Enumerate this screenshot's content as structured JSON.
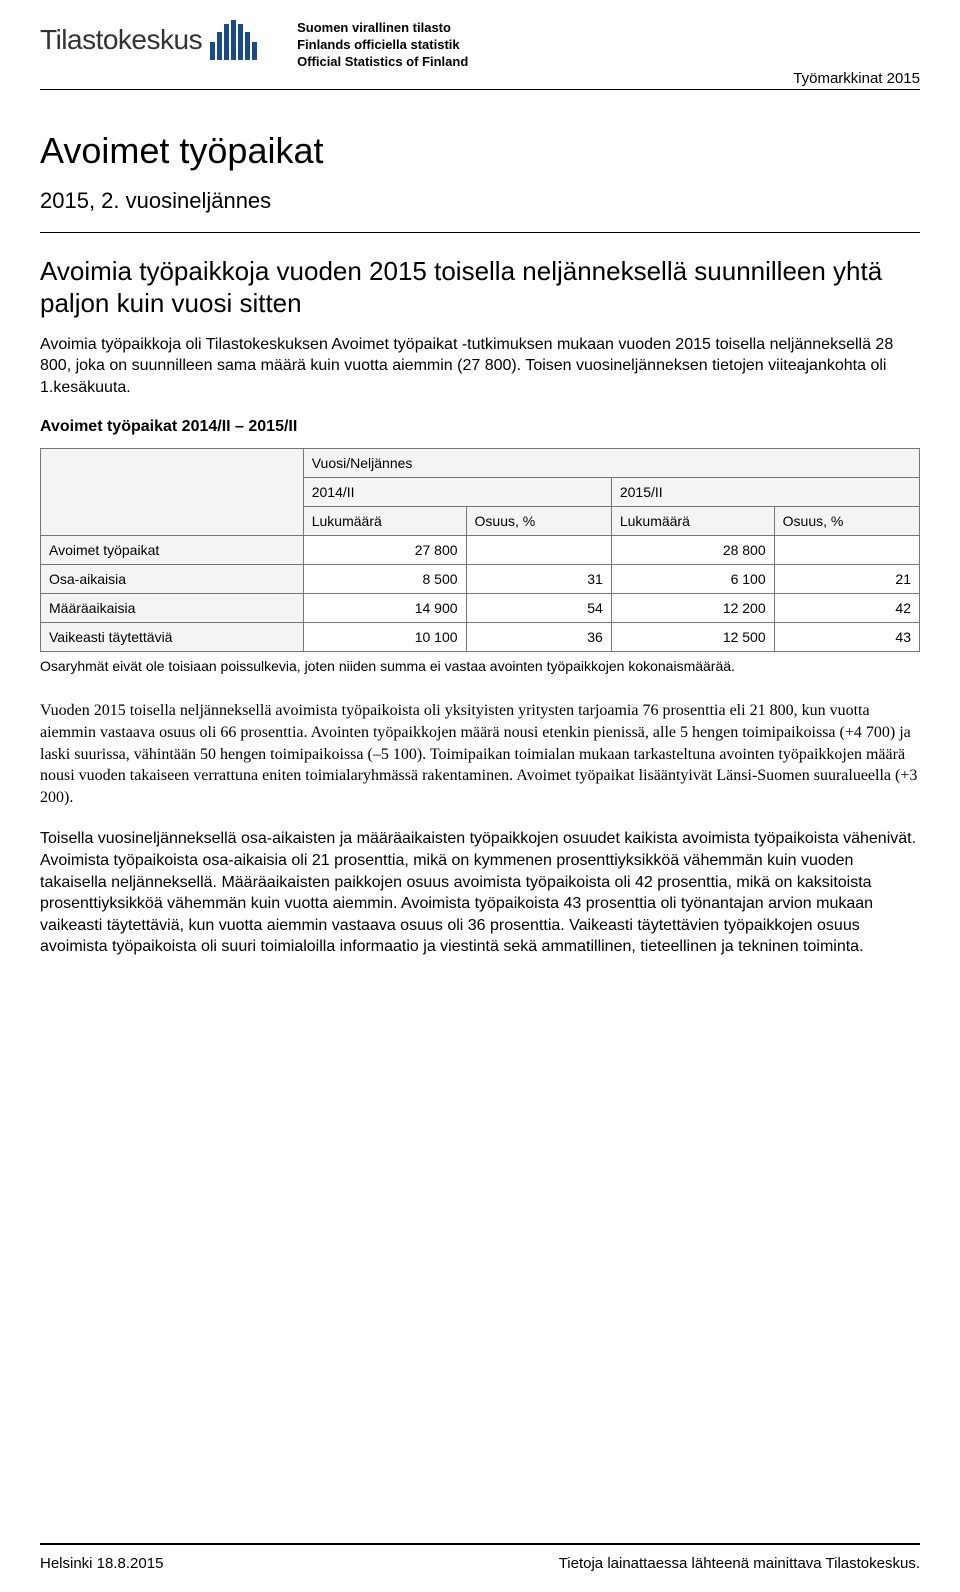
{
  "header": {
    "logo_text": "Tilastokeskus",
    "official_lines": [
      "Suomen virallinen tilasto",
      "Finlands officiella statistik",
      "Official Statistics of Finland"
    ],
    "category": "Työmarkkinat 2015"
  },
  "title": "Avoimet työpaikat",
  "subtitle": "2015, 2. vuosineljännes",
  "heading": "Avoimia työpaikkoja vuoden 2015 toisella neljänneksellä suunnilleen yhtä paljon kuin vuosi sitten",
  "intro": "Avoimia työpaikkoja oli Tilastokeskuksen Avoimet työpaikat -tutkimuksen mukaan vuoden 2015 toisella neljänneksellä 28 800, joka on suunnilleen sama määrä kuin vuotta aiemmin (27 800). Toisen vuosineljänneksen tietojen viiteajankohta oli 1.kesäkuuta.",
  "table": {
    "title": "Avoimet työpaikat 2014/II – 2015/II",
    "group_header": "Vuosi/Neljännes",
    "period1": "2014/II",
    "period2": "2015/II",
    "col_count": "Lukumäärä",
    "col_share": "Osuus, %",
    "rows": [
      {
        "label": "Avoimet työpaikat",
        "c1": "27 800",
        "s1": "",
        "c2": "28 800",
        "s2": ""
      },
      {
        "label": "Osa-aikaisia",
        "c1": "8 500",
        "s1": "31",
        "c2": "6 100",
        "s2": "21"
      },
      {
        "label": "Määräaikaisia",
        "c1": "14 900",
        "s1": "54",
        "c2": "12 200",
        "s2": "42"
      },
      {
        "label": "Vaikeasti täytettäviä",
        "c1": "10 100",
        "s1": "36",
        "c2": "12 500",
        "s2": "43"
      }
    ],
    "note": "Osaryhmät eivät ole toisiaan poissulkevia, joten niiden summa ei vastaa avointen työpaikkojen kokonaismäärää."
  },
  "para1": "Vuoden 2015 toisella neljänneksellä avoimista työpaikoista oli yksityisten yritysten tarjoamia 76 prosenttia eli 21 800, kun vuotta aiemmin vastaava osuus oli 66 prosenttia. Avointen työpaikkojen määrä nousi etenkin pienissä, alle 5 hengen toimipaikoissa (+4 700) ja laski suurissa, vähintään 50 hengen toimipaikoissa (–5 100). Toimipaikan toimialan mukaan tarkasteltuna avointen työpaikkojen määrä nousi vuoden takaiseen verrattuna eniten toimialaryhmässä rakentaminen. Avoimet työpaikat lisääntyivät Länsi-Suomen suuralueella (+3 200).",
  "para2": "Toisella vuosineljänneksellä osa-aikaisten ja määräaikaisten työpaikkojen osuudet kaikista avoimista työpaikoista vähenivät. Avoimista työpaikoista osa-aikaisia oli 21 prosenttia, mikä on kymmenen prosenttiyksikköä vähemmän kuin vuoden takaisella neljänneksellä. Määräaikaisten paikkojen osuus avoimista työpaikoista oli 42 prosenttia, mikä on kaksitoista prosenttiyksikköä vähemmän kuin vuotta aiemmin. Avoimista työpaikoista 43 prosenttia oli työnantajan arvion mukaan vaikeasti täytettäviä, kun vuotta aiemmin vastaava osuus oli 36 prosenttia. Vaikeasti täytettävien työpaikkojen osuus avoimista työpaikoista oli suuri toimialoilla informaatio ja viestintä sekä ammatillinen, tieteellinen ja tekninen toiminta.",
  "footer": {
    "left": "Helsinki 18.8.2015",
    "right": "Tietoja lainattaessa lähteenä mainittava Tilastokeskus."
  }
}
